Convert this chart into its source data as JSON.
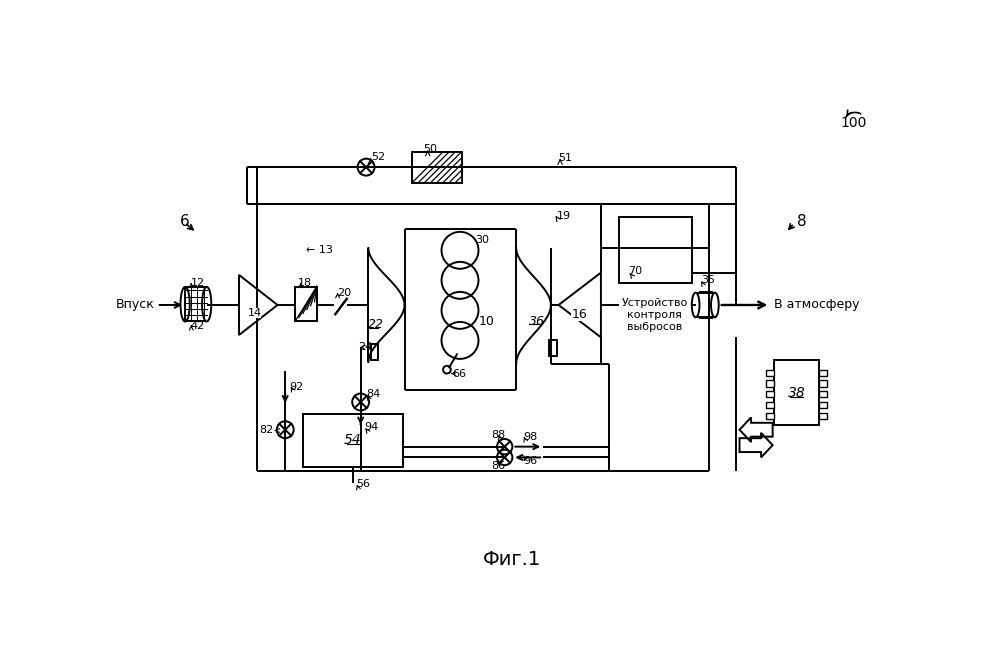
{
  "title": "Фиг.1",
  "bg_color": "#ffffff",
  "line_color": "#000000",
  "vpusk_text": "Впуск",
  "atm_text": "В атмосферу",
  "ustr_text": "Устройство\nконтроля\nвыбросов",
  "label_100": "100",
  "label_6": "6",
  "label_8": "8"
}
